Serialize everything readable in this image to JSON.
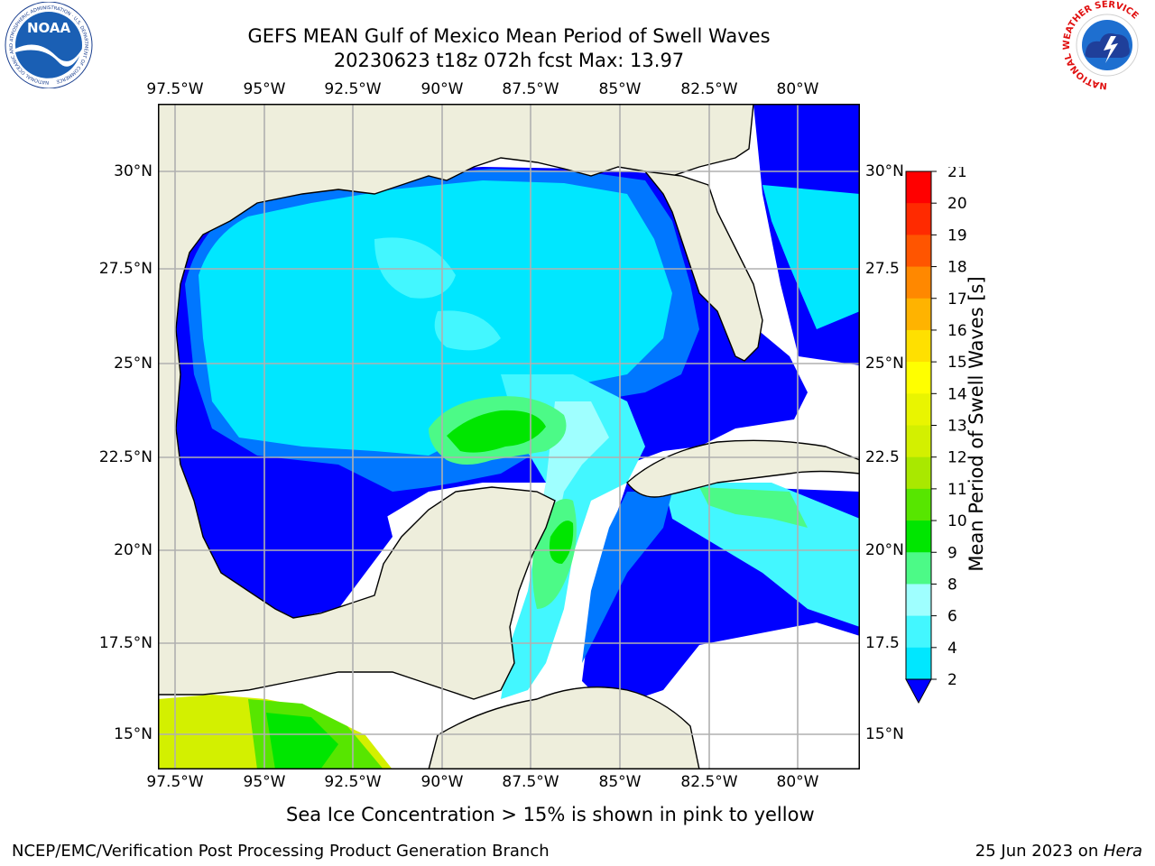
{
  "title": {
    "line1": "GEFS MEAN Gulf of Mexico Mean Period of Swell Waves",
    "line2": "20230623 t18z 072h fcst   Max: 13.97"
  },
  "map": {
    "lon_labels": [
      "97.5°W",
      "95°W",
      "92.5°W",
      "90°W",
      "87.5°W",
      "85°W",
      "82.5°W",
      "80°W"
    ],
    "lat_labels_left": [
      "30°N",
      "27.5°N",
      "25°N",
      "22.5°N",
      "20°N",
      "17.5°N",
      "15°N"
    ],
    "lat_labels_right": [
      "30°N",
      "27.5",
      "25°N",
      "22.5",
      "20°N",
      "17.5",
      "15°N"
    ],
    "colors": {
      "land": "#eeeedc",
      "coast": "#000000",
      "grid": "#b0b0b0"
    }
  },
  "colorbar": {
    "label": "Mean Period of Swell Waves [s]",
    "ticks": [
      "2",
      "4",
      "6",
      "8",
      "9",
      "10",
      "11",
      "12",
      "13",
      "14",
      "15",
      "16",
      "17",
      "18",
      "19",
      "20",
      "21"
    ],
    "colors": [
      "#0000ff",
      "#0077ff",
      "#00e7ff",
      "#43f7ff",
      "#9fffff",
      "#4cfa87",
      "#00e600",
      "#57e600",
      "#a9e800",
      "#d3f000",
      "#e9f500",
      "#ffff00",
      "#ffe000",
      "#ffb300",
      "#ff8800",
      "#ff5500",
      "#ff2a00",
      "#ff0000"
    ]
  },
  "footer": {
    "note": "Sea Ice Concentration > 15% is shown in pink to yellow",
    "left": "NCEP/EMC/Verification Post Processing Product Generation Branch",
    "right_prefix": "25 Jun 2023 on ",
    "right_host": "Hera"
  },
  "logos": {
    "noaa": "NOAA",
    "noaa_ring": "NATIONAL OCEANIC AND ATMOSPHERIC ADMINISTRATION · U.S. DEPARTMENT OF COMMERCE",
    "nws_ring": "NATIONAL WEATHER SERVICE"
  }
}
